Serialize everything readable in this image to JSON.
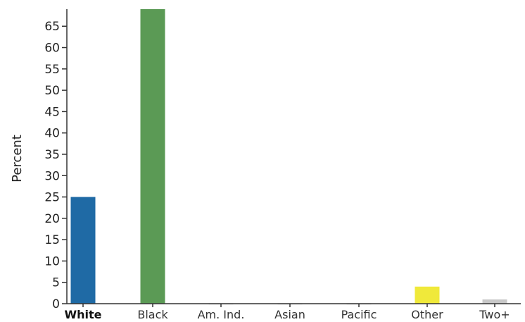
{
  "chart_data": {
    "type": "bar",
    "title": "",
    "xlabel": "",
    "ylabel": "Percent",
    "ylim": [
      0,
      69
    ],
    "yticks": [
      0,
      5,
      10,
      15,
      20,
      25,
      30,
      35,
      40,
      45,
      50,
      55,
      60,
      65
    ],
    "grid": false,
    "legend": "none",
    "categories": [
      "White",
      "Black",
      "Am. Ind.",
      "Asian",
      "Pacific",
      "Other",
      "Two+"
    ],
    "highlighted_category": "White",
    "values": [
      25,
      69,
      0,
      0,
      0,
      4,
      1
    ],
    "colors": [
      "#1f6aa5",
      "#5b9a55",
      "#b0b0b0",
      "#b0b0b0",
      "#b0b0b0",
      "#f0e93a",
      "#c8c8c8"
    ]
  }
}
